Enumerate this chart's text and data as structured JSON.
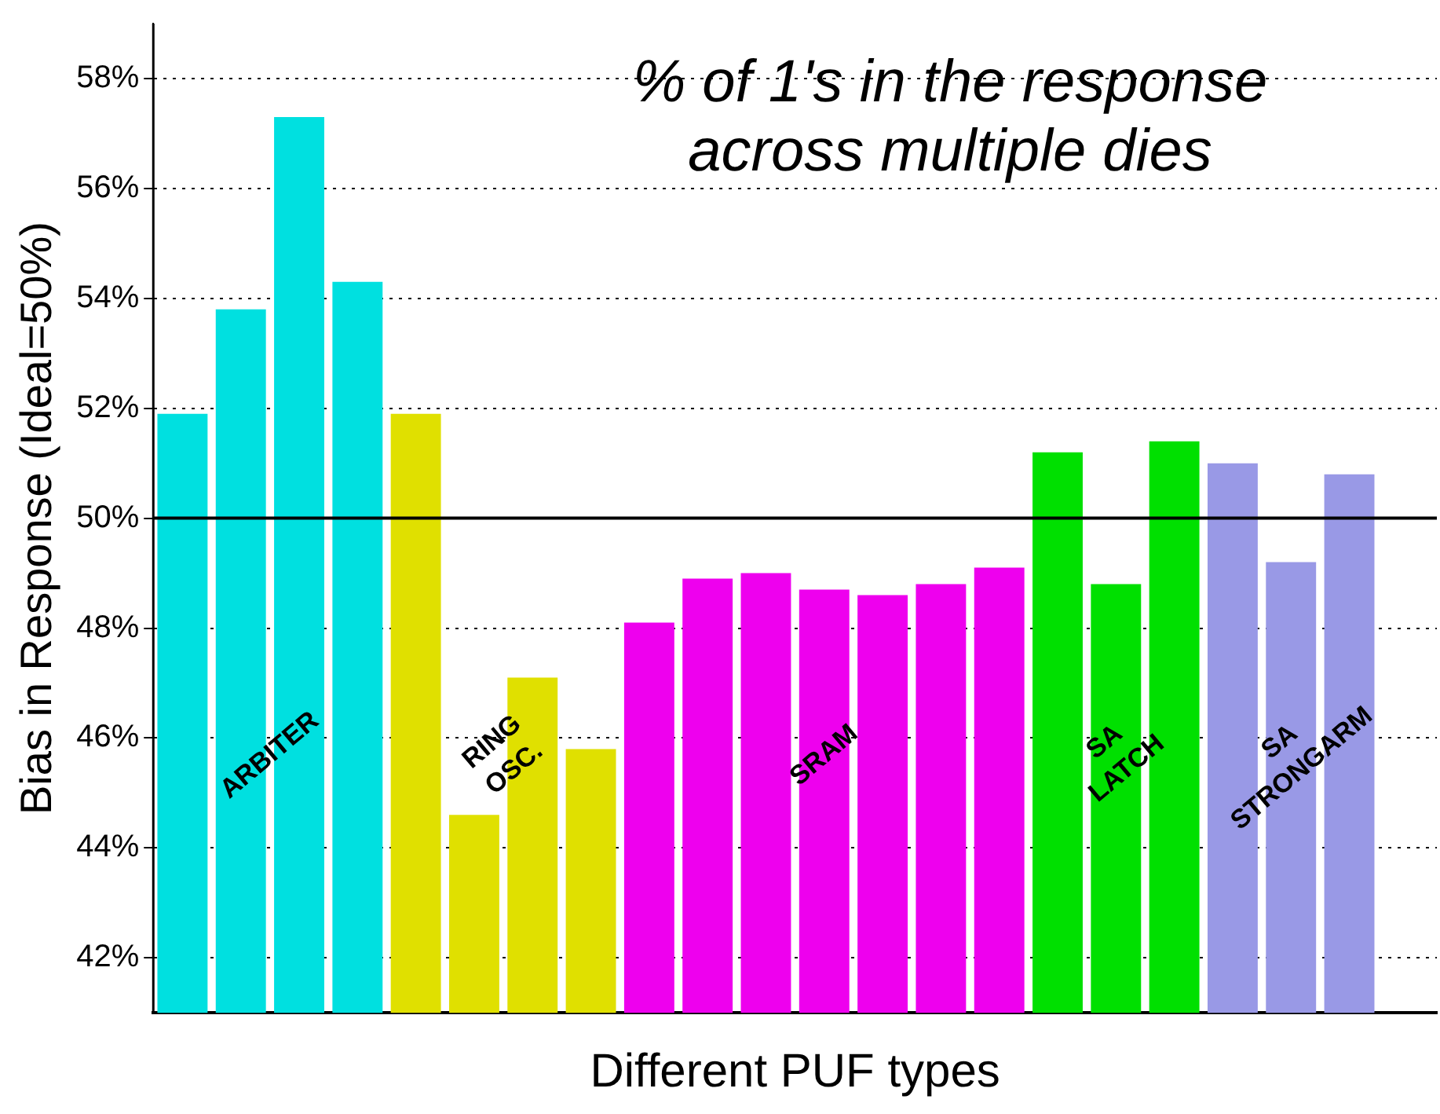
{
  "chart_data": {
    "type": "bar",
    "title": "% of 1's in the response\nacross multiple dies",
    "xlabel": "Different PUF types",
    "ylabel": "Bias in Response (Ideal=50%)",
    "categories": [
      null,
      null,
      null,
      null,
      null,
      null,
      null,
      null,
      null,
      null,
      null,
      null,
      null,
      null,
      null,
      null,
      null,
      null,
      null,
      null,
      null,
      null
    ],
    "series": [
      {
        "name": "ARBITER",
        "color": "#00e0e0",
        "values": [
          51.9,
          53.8,
          57.3,
          54.3,
          null,
          null,
          null,
          null,
          null,
          null,
          null,
          null,
          null,
          null,
          null,
          null,
          null,
          null,
          null,
          null,
          null,
          null
        ]
      },
      {
        "name": "RING\nOSC.",
        "color": "#e0e000",
        "values": [
          null,
          null,
          null,
          null,
          51.9,
          44.6,
          47.1,
          45.8,
          null,
          null,
          null,
          null,
          null,
          null,
          null,
          null,
          null,
          null,
          null,
          null,
          null,
          null
        ]
      },
      {
        "name": "SRAM",
        "color": "#ee00ee",
        "values": [
          null,
          null,
          null,
          null,
          null,
          null,
          null,
          null,
          48.1,
          48.9,
          49.0,
          48.7,
          48.6,
          48.8,
          49.1,
          null,
          null,
          null,
          null,
          null,
          null,
          null
        ]
      },
      {
        "name": "SA\nLATCH",
        "color": "#00e000",
        "values": [
          null,
          null,
          null,
          null,
          null,
          null,
          null,
          null,
          null,
          null,
          null,
          null,
          null,
          null,
          null,
          51.2,
          48.8,
          51.4,
          null,
          null,
          null,
          null
        ]
      },
      {
        "name": "SA\nSTRONGARM",
        "color": "#9999e6",
        "values": [
          null,
          null,
          null,
          null,
          null,
          null,
          null,
          null,
          null,
          null,
          null,
          null,
          null,
          null,
          null,
          null,
          null,
          null,
          51.0,
          49.2,
          50.8,
          null
        ]
      }
    ],
    "ylim": [
      41,
      59
    ],
    "yticks": [
      {
        "value": 42,
        "label": "42%"
      },
      {
        "value": 44,
        "label": "44%"
      },
      {
        "value": 46,
        "label": "46%"
      },
      {
        "value": 48,
        "label": "48%"
      },
      {
        "value": 50,
        "label": "50%"
      },
      {
        "value": 52,
        "label": "52%"
      },
      {
        "value": 54,
        "label": "54%"
      },
      {
        "value": 56,
        "label": "56%"
      },
      {
        "value": 58,
        "label": "58%"
      }
    ],
    "grid": "y",
    "ref_lines": [
      {
        "axis": "y",
        "value": 50,
        "color": "#000000",
        "line_style": "solid"
      }
    ]
  }
}
